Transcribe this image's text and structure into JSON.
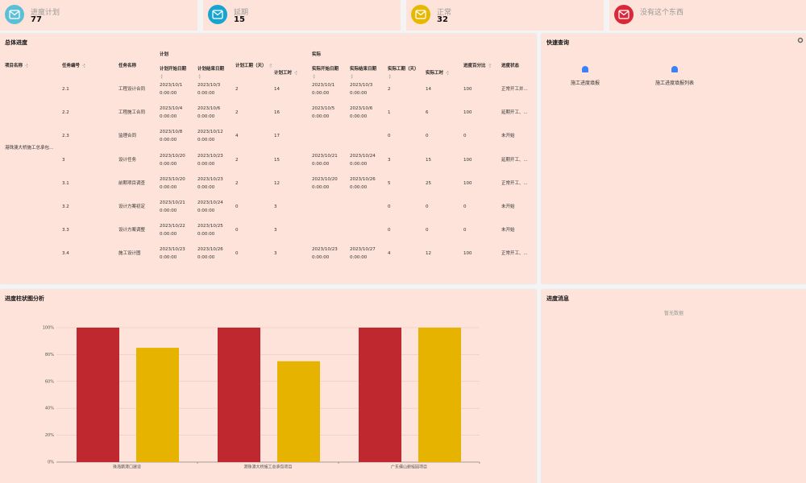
{
  "cards": [
    {
      "label": "进度计划",
      "value": "77",
      "color": "#5bbfd6"
    },
    {
      "label": "延期",
      "value": "15",
      "color": "#18a4d0"
    },
    {
      "label": "正常",
      "value": "32",
      "color": "#e8b800"
    },
    {
      "label": "没有这个东西",
      "color": "#d9283a"
    }
  ],
  "progress": {
    "title": "总体进度",
    "groups": [
      "计划",
      "实际"
    ],
    "columns": [
      "项目名称",
      "任务编号",
      "任务名称",
      "计划开始日期",
      "计划结束日期",
      "计划工期（天）",
      "计划工时",
      "实际开始日期",
      "实际结束日期",
      "实际工期（天）",
      "实际工时",
      "进度百分比",
      "进度状态"
    ],
    "project": "港珠澳大桥施工总承包...",
    "rows": [
      [
        "2.1",
        "工程设计合同",
        "2023/10/1\n0:00:00",
        "2023/10/3\n0:00:00",
        "2",
        "14",
        "2023/10/1\n0:00:00",
        "2023/10/3\n0:00:00",
        "2",
        "14",
        "100",
        "正常开工并..."
      ],
      [
        "2.2",
        "工程施工合同",
        "2023/10/4\n0:00:00",
        "2023/10/6\n0:00:00",
        "2",
        "16",
        "2023/10/5\n0:00:00",
        "2023/10/6\n0:00:00",
        "1",
        "6",
        "100",
        "延期开工、..."
      ],
      [
        "2.3",
        "监理合同",
        "2023/10/8\n0:00:00",
        "2023/10/12\n0:00:00",
        "4",
        "17",
        null,
        null,
        "0",
        "0",
        "0",
        "未开始"
      ],
      [
        "3",
        "设计任务",
        "2023/10/20\n0:00:00",
        "2023/10/23\n0:00:00",
        "2",
        "15",
        "2023/10/21\n0:00:00",
        "2023/10/24\n0:00:00",
        "3",
        "15",
        "100",
        "延期开工、..."
      ],
      [
        "3.1",
        "前期项目调查",
        "2023/10/20\n0:00:00",
        "2023/10/23\n0:00:00",
        "2",
        "12",
        "2023/10/20\n0:00:00",
        "2023/10/26\n0:00:00",
        "5",
        "25",
        "100",
        "正常开工、..."
      ],
      [
        "3.2",
        "设计方案初定",
        "2023/10/21\n0:00:00",
        "2023/10/24\n0:00:00",
        "0",
        "3",
        null,
        null,
        "0",
        "0",
        "0",
        "未开始"
      ],
      [
        "3.3",
        "设计方案调整",
        "2023/10/22\n0:00:00",
        "2023/10/25\n0:00:00",
        "0",
        "3",
        null,
        null,
        "0",
        "0",
        "0",
        "未开始"
      ],
      [
        "3.4",
        "施工设计图",
        "2023/10/23\n0:00:00",
        "2023/10/26\n0:00:00",
        "0",
        "3",
        "2023/10/23\n0:00:00",
        "2023/10/27\n0:00:00",
        "4",
        "12",
        "100",
        "正常开工、..."
      ]
    ]
  },
  "quick": {
    "title": "快速查询",
    "links": [
      "施工进度填报",
      "施工进度填报列表"
    ]
  },
  "chart": {
    "type": "bar",
    "title": "进度柱状图分析",
    "categories": [
      "珠海籍港口建设",
      "港珠澳大桥施工总承包项目",
      "广东佛山碧桂园项目"
    ],
    "series": [
      {
        "color": "#c0282f",
        "values": [
          100,
          100,
          100
        ]
      },
      {
        "color": "#e6b400",
        "values": [
          85,
          75,
          100
        ]
      }
    ],
    "ylim": [
      0,
      100
    ],
    "yticks": [
      {
        "value": 0,
        "label": "0%"
      },
      {
        "value": 20,
        "label": "20%"
      },
      {
        "value": 40,
        "label": "40%"
      },
      {
        "value": 60,
        "label": "60%"
      },
      {
        "value": 80,
        "label": "80%"
      },
      {
        "value": 100,
        "label": "100%"
      }
    ],
    "grid": true
  },
  "messages": {
    "title": "进度消息",
    "empty": "暂无数据"
  }
}
